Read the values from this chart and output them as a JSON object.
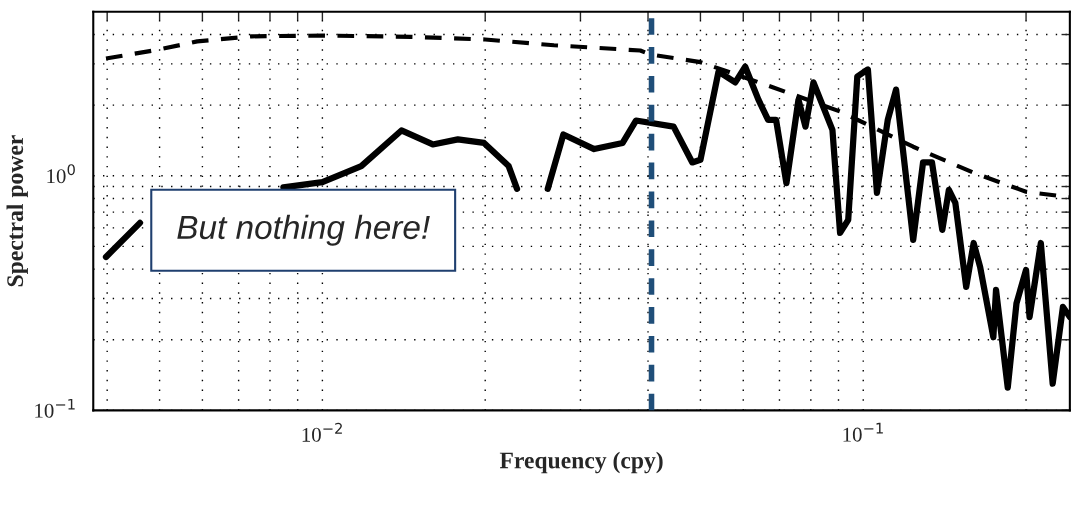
{
  "chart_data": {
    "type": "line",
    "xlabel": "Frequency (cpy)",
    "ylabel": "Spectral power",
    "log": "xy",
    "grid": true,
    "xlim": [
      0.00377,
      0.241
    ],
    "ylim": [
      0.1,
      5
    ],
    "xticks": [
      {
        "value": 0.004,
        "label": null
      },
      {
        "value": 0.005,
        "label": null
      },
      {
        "value": 0.006,
        "label": null
      },
      {
        "value": 0.007,
        "label": null
      },
      {
        "value": 0.008,
        "label": null
      },
      {
        "value": 0.009,
        "label": null
      },
      {
        "value": 0.01,
        "label": "10$^{−2}$"
      },
      {
        "value": 0.02,
        "label": null
      },
      {
        "value": 0.03,
        "label": null
      },
      {
        "value": 0.04,
        "label": null
      },
      {
        "value": 0.05,
        "label": null
      },
      {
        "value": 0.06,
        "label": null
      },
      {
        "value": 0.07,
        "label": null
      },
      {
        "value": 0.08,
        "label": null
      },
      {
        "value": 0.09,
        "label": null
      },
      {
        "value": 0.1,
        "label": "10$^{−1}$"
      },
      {
        "value": 0.2,
        "label": null
      }
    ],
    "yticks": [
      {
        "value": 0.1,
        "label": "10$^{−1}$"
      },
      {
        "value": 0.2,
        "label": null
      },
      {
        "value": 0.3,
        "label": null
      },
      {
        "value": 0.4,
        "label": null
      },
      {
        "value": 0.5,
        "label": null
      },
      {
        "value": 0.6,
        "label": null
      },
      {
        "value": 0.7,
        "label": null
      },
      {
        "value": 0.8,
        "label": null
      },
      {
        "value": 0.9,
        "label": null
      },
      {
        "value": 1,
        "label": "10$^{0}$"
      },
      {
        "value": 2,
        "label": null
      },
      {
        "value": 3,
        "label": null
      },
      {
        "value": 4,
        "label": null
      }
    ],
    "series": [
      {
        "color": "#000000",
        "line_style": "dashed",
        "x": [
          0.00398,
          0.00498,
          0.00587,
          0.0074,
          0.01,
          0.0146,
          0.02,
          0.0268,
          0.0387,
          0.0404,
          0.05,
          0.0682,
          0.0906,
          0.1237,
          0.16,
          0.2,
          0.241
        ],
        "values": [
          3.16,
          3.45,
          3.74,
          3.93,
          3.96,
          3.91,
          3.81,
          3.6,
          3.42,
          3.29,
          3.05,
          2.38,
          1.88,
          1.33,
          1.03,
          0.855,
          0.81
        ]
      },
      {
        "color": "#000000",
        "line_style": "solid",
        "x": [
          0.00398,
          0.0046,
          0.0065,
          0.00847,
          0.01,
          0.0118,
          0.014,
          0.016,
          0.0178,
          0.0199,
          0.0221,
          0.0229,
          0.0245,
          0.0261,
          0.0279,
          0.0318,
          0.0359,
          0.038,
          0.0446,
          0.0483,
          0.05,
          0.054,
          0.058,
          0.0605,
          0.064,
          0.0667,
          0.069,
          0.0721,
          0.0759,
          0.0782,
          0.0809,
          0.0877,
          0.0906,
          0.0938,
          0.0975,
          0.102,
          0.106,
          0.111,
          0.115,
          0.1237,
          0.129,
          0.134,
          0.14,
          0.144,
          0.148,
          0.155,
          0.16,
          0.1645,
          0.174,
          0.176,
          0.185,
          0.192,
          0.2,
          0.203,
          0.213,
          0.224,
          0.234,
          0.241
        ],
        "values": [
          0.451,
          0.63,
          null,
          0.893,
          0.94,
          1.1,
          1.56,
          1.36,
          1.43,
          1.38,
          1.1,
          0.88,
          null,
          0.88,
          1.5,
          1.3,
          1.38,
          1.72,
          1.62,
          1.14,
          1.17,
          2.78,
          2.5,
          2.92,
          2.11,
          1.73,
          1.73,
          0.93,
          2.11,
          1.62,
          2.5,
          1.57,
          0.571,
          0.649,
          2.65,
          2.84,
          0.846,
          1.73,
          2.33,
          0.533,
          1.14,
          1.14,
          0.588,
          0.871,
          0.767,
          0.336,
          0.517,
          0.408,
          0.205,
          0.326,
          0.125,
          0.286,
          0.397,
          0.25,
          0.517,
          0.13,
          0.276,
          0.25
        ]
      }
    ],
    "ref_lines": [
      {
        "axis": "x",
        "value": 0.0406,
        "color": "#1f4e79",
        "line_style": "dashed"
      }
    ],
    "annotations": [
      "But nothing here!"
    ]
  }
}
